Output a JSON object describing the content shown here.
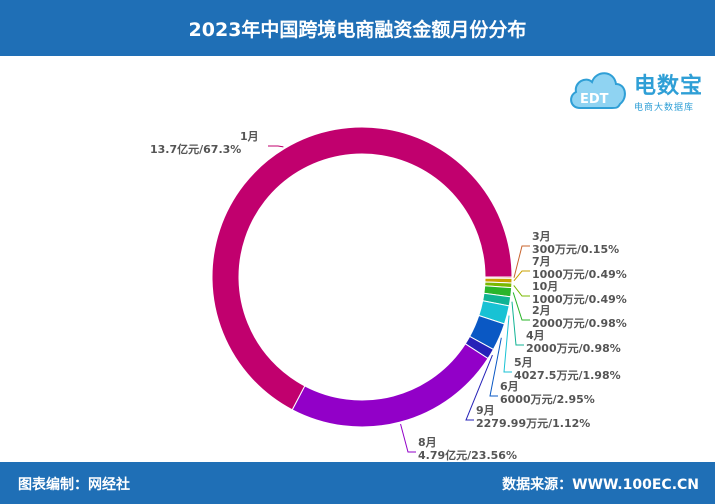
{
  "header": {
    "title": "2023年中国跨境电商融资金额月份分布"
  },
  "logo": {
    "name": "电数宝",
    "subtitle": "电商大数据库",
    "cloud_text": "EDT"
  },
  "footer": {
    "left": "图表编制：网经社",
    "right": "数据来源：WWW.100EC.CN"
  },
  "colors": {
    "header_bg": "#1f6fb6",
    "logo": "#2f9fd6"
  },
  "chart_data": {
    "type": "pie",
    "variant": "donut",
    "start": "3 o'clock, clockwise",
    "labels_position": "outside with leader lines",
    "slices": [
      {
        "name": "3月",
        "label": "300万元/0.15%",
        "value": 0.15,
        "color": "#c8642e"
      },
      {
        "name": "7月",
        "label": "1000万元/0.49%",
        "value": 0.49,
        "color": "#c9a100"
      },
      {
        "name": "10月",
        "label": "1000万元/0.49%",
        "value": 0.49,
        "color": "#7ab800"
      },
      {
        "name": "2月",
        "label": "2000万元/0.98%",
        "value": 0.98,
        "color": "#2ab52a"
      },
      {
        "name": "4月",
        "label": "2000万元/0.98%",
        "value": 0.98,
        "color": "#10b394"
      },
      {
        "name": "5月",
        "label": "4027.5万元/1.98%",
        "value": 1.98,
        "color": "#18c2d4"
      },
      {
        "name": "6月",
        "label": "6000万元/2.95%",
        "value": 2.95,
        "color": "#0a58c4"
      },
      {
        "name": "9月",
        "label": "2279.99万元/1.12%",
        "value": 1.12,
        "color": "#2622b8"
      },
      {
        "name": "8月",
        "label": "4.79亿元/23.56%",
        "value": 23.56,
        "color": "#9200c8"
      },
      {
        "name": "1月",
        "label": "13.7亿元/67.3%",
        "value": 67.3,
        "color": "#c1006e"
      }
    ]
  }
}
